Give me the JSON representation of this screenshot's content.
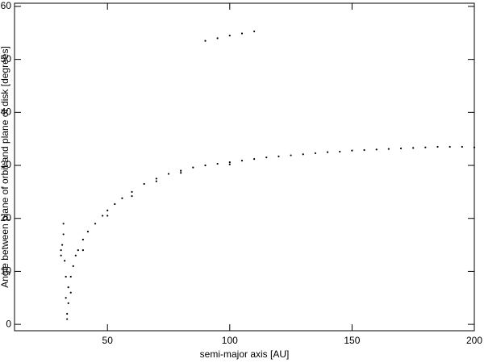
{
  "chart_data": {
    "type": "scatter",
    "x_label": "semi-major axis [AU]",
    "y_label": "Angle between plane of orbit and plane of disk [degrees]",
    "xlim": [
      12,
      200
    ],
    "ylim": [
      -1.2,
      60.6
    ],
    "xticks": [
      50,
      100,
      150,
      200
    ],
    "yticks": [
      0,
      10,
      20,
      30,
      40,
      50,
      60
    ],
    "color": "#000000",
    "x": [
      31,
      31,
      31.5,
      32,
      32,
      32.5,
      33,
      33,
      33.5,
      33.5,
      34,
      34,
      35,
      35,
      36,
      37,
      38,
      40,
      40,
      42,
      45,
      48,
      50,
      50,
      53,
      56,
      60,
      60,
      65,
      70,
      70,
      75,
      80,
      80,
      85,
      90,
      95,
      100,
      100,
      105,
      110,
      115,
      120,
      125,
      130,
      135,
      140,
      145,
      150,
      155,
      160,
      165,
      170,
      175,
      180,
      185,
      190,
      195,
      200,
      90,
      95,
      100,
      105,
      110
    ],
    "y": [
      13,
      14,
      15,
      17,
      19,
      12,
      9,
      5,
      2,
      1,
      4,
      7,
      9,
      6,
      11,
      13,
      14,
      16,
      14,
      17.5,
      19,
      20.5,
      21.5,
      20.5,
      22.7,
      23.8,
      25,
      24.2,
      26.5,
      27.5,
      27,
      28.4,
      29,
      28.6,
      29.6,
      30,
      30.3,
      30.6,
      30.2,
      30.9,
      31.2,
      31.5,
      31.7,
      31.9,
      32.1,
      32.3,
      32.5,
      32.6,
      32.8,
      32.9,
      33,
      33.1,
      33.2,
      33.3,
      33.4,
      33.5,
      33.5,
      33.5,
      33.4,
      53.5,
      54,
      54.5,
      54.9,
      55.3
    ]
  }
}
